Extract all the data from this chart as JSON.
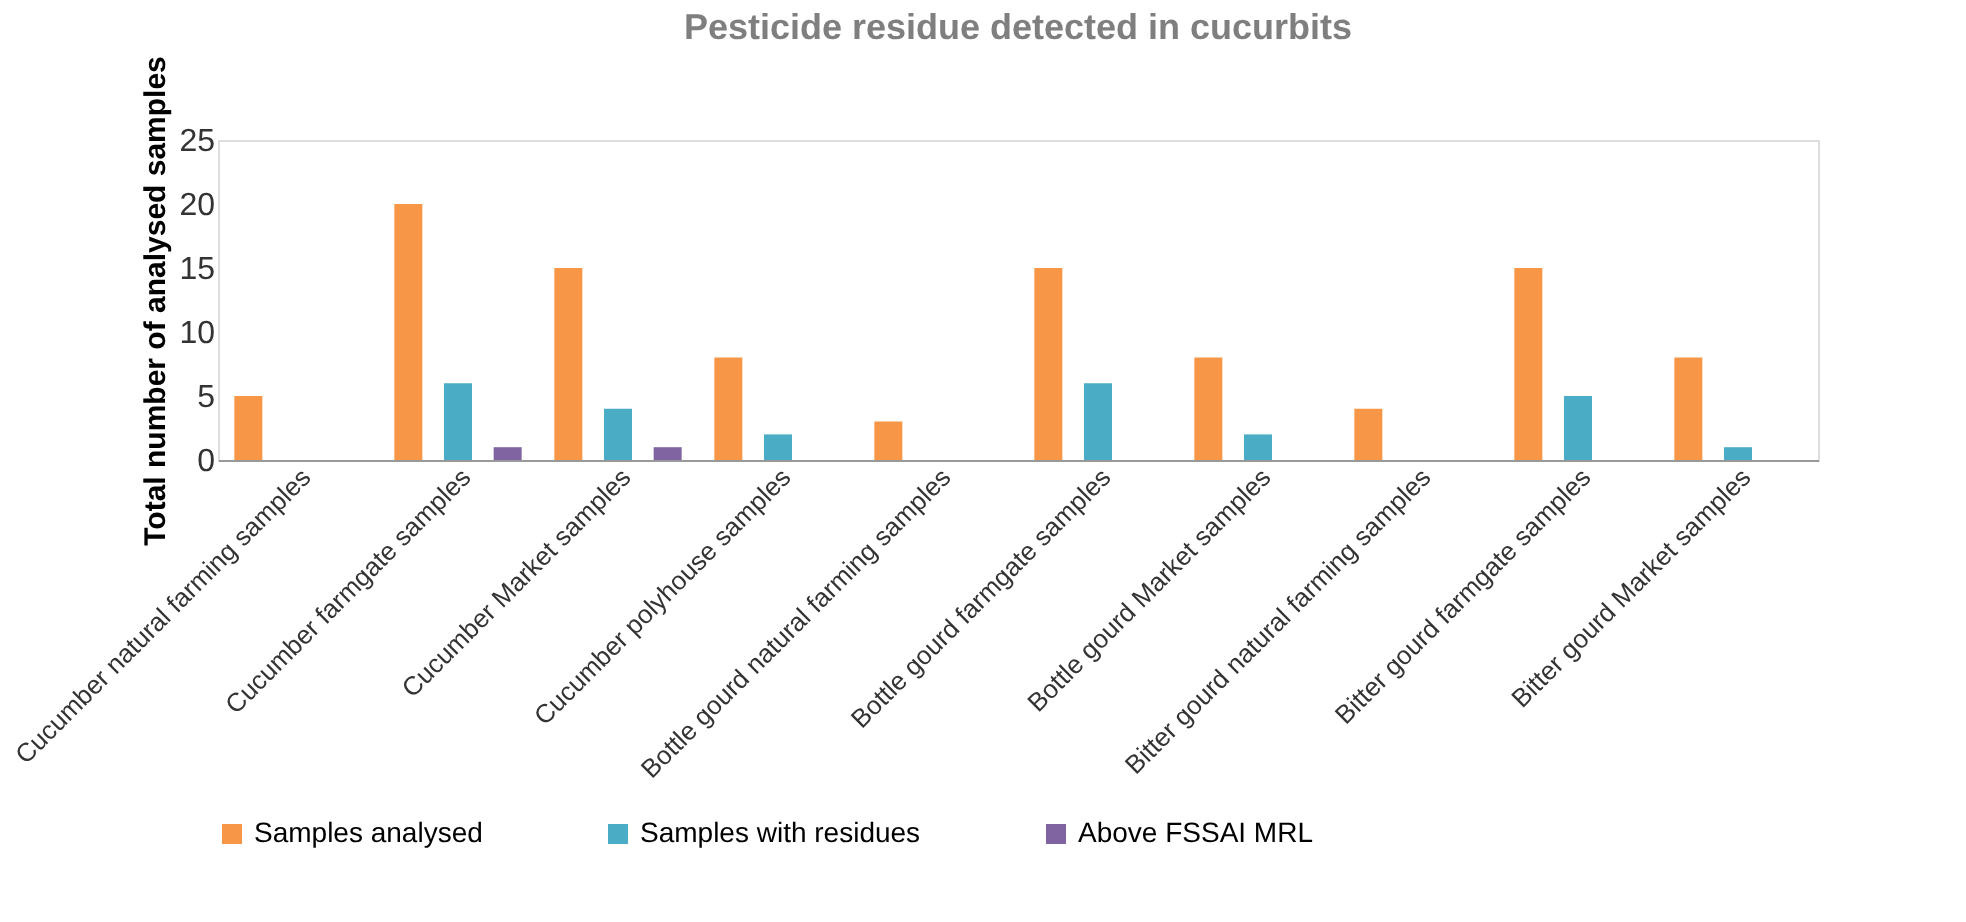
{
  "chart_data": {
    "type": "bar",
    "title": "Pesticide residue detected in cucurbits",
    "ylabel": "Total number of analysed samples",
    "categories": [
      "Cucumber natural farming samples",
      "Cucumber farmgate samples",
      "Cucumber Market samples",
      "Cucumber  polyhouse samples",
      "Bottle gourd natural farming samples",
      "Bottle gourd farmgate samples",
      "Bottle gourd Market samples",
      "Bitter gourd natural farming samples",
      "Bitter gourd farmgate samples",
      "Bitter gourd Market samples"
    ],
    "series": [
      {
        "name": "Samples analysed",
        "color": "#f79646",
        "values": [
          5,
          20,
          15,
          8,
          3,
          15,
          8,
          4,
          15,
          8
        ]
      },
      {
        "name": "Samples with residues",
        "color": "#4bacc6",
        "values": [
          0,
          6,
          4,
          2,
          0,
          6,
          2,
          0,
          5,
          1
        ]
      },
      {
        "name": "Above FSSAI MRL",
        "color": "#8064a2",
        "values": [
          0,
          1,
          1,
          0,
          0,
          0,
          0,
          0,
          0,
          0
        ]
      }
    ],
    "ylim": [
      0,
      25
    ],
    "yticks": [
      0,
      5,
      10,
      15,
      20,
      25
    ],
    "grid": false,
    "legend": "bottom"
  }
}
